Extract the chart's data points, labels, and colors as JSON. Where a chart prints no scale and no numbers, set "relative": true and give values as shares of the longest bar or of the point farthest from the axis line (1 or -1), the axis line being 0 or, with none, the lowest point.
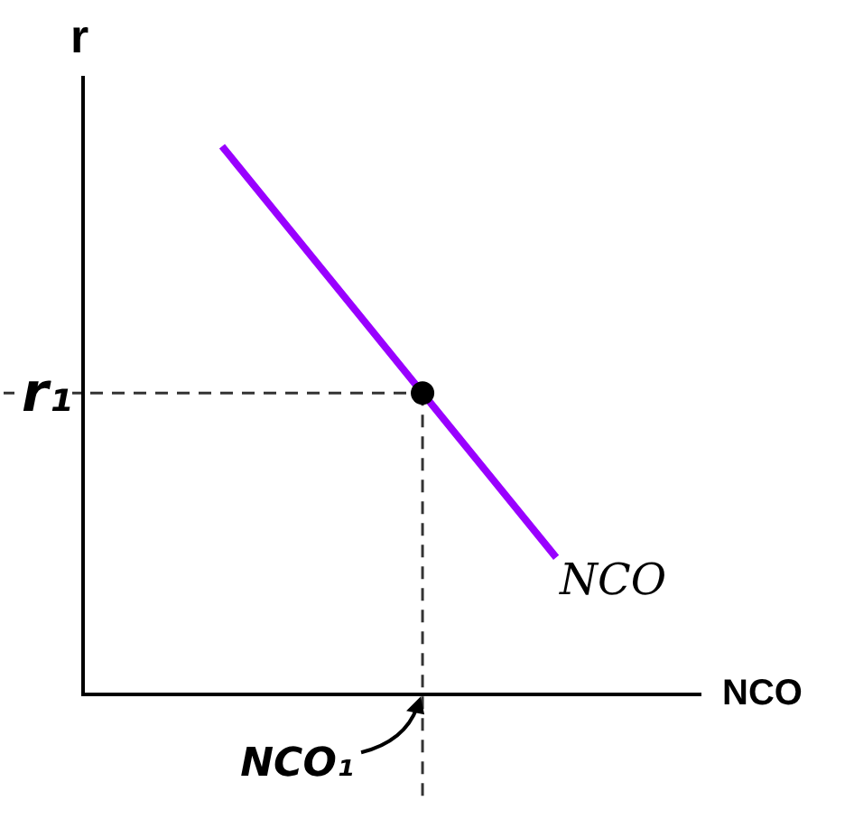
{
  "chart_data": {
    "type": "line",
    "relative": true,
    "xlabel": "NCO",
    "ylabel": "r",
    "grid": false,
    "legend": false,
    "categories": [
      null,
      null,
      null,
      null,
      null,
      null
    ],
    "series": [
      {
        "name": "NCO",
        "color": "#9900ff",
        "values": [
          1,
          0.85,
          0.7,
          0.55,
          0.4,
          0.25
        ]
      }
    ],
    "ref_lines": [
      {
        "axis": "y",
        "value": 0.55,
        "label": "r₁",
        "line_style": "dashed"
      }
    ],
    "annotations": [
      "NCO₁"
    ]
  }
}
